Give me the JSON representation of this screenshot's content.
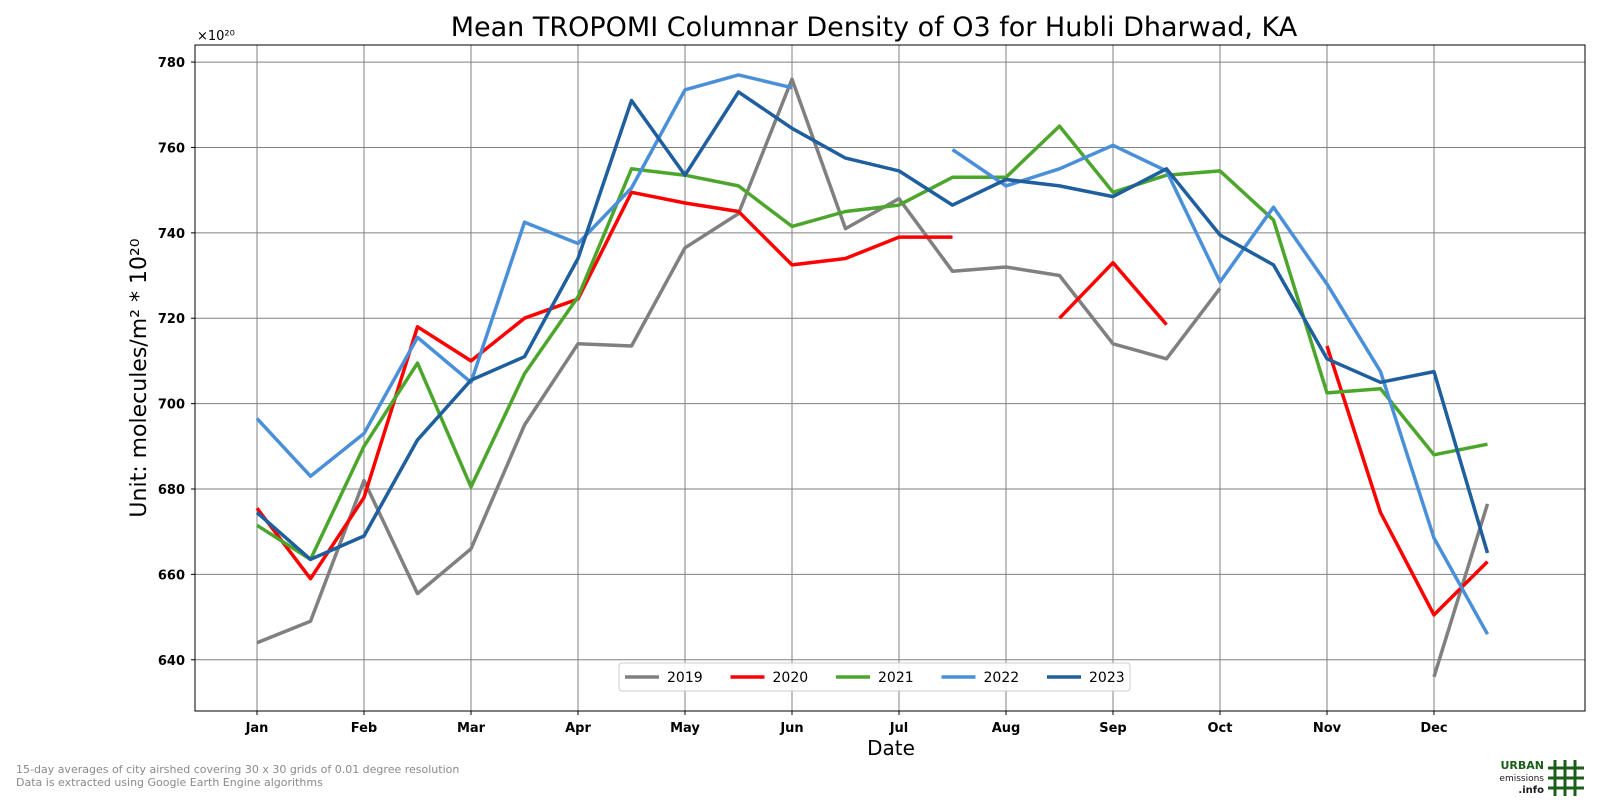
{
  "chart_data": {
    "type": "line",
    "title": "Mean TROPOMI Columnar Density of O3 for Hubli Dharwad, KA",
    "xlabel": "Date",
    "ylabel": "Unit: molecules/m² * 10²⁰",
    "y_multiplier_label": "×10²⁰",
    "x_tick_labels": [
      "Jan",
      "Feb",
      "Mar",
      "Apr",
      "May",
      "Jun",
      "Jul",
      "Aug",
      "Sep",
      "Oct",
      "Nov",
      "Dec"
    ],
    "x": [
      "Jan",
      "Jan 16",
      "Feb",
      "Feb 16",
      "Mar",
      "Mar 16",
      "Apr",
      "Apr 16",
      "May",
      "May 16",
      "Jun",
      "Jun 16",
      "Jul",
      "Jul 16",
      "Aug",
      "Aug 16",
      "Sep",
      "Sep 16",
      "Oct",
      "Oct 16",
      "Nov",
      "Nov 16",
      "Dec",
      "Dec 16"
    ],
    "ylim": [
      628,
      784
    ],
    "yticks": [
      640,
      660,
      680,
      700,
      720,
      740,
      760,
      780
    ],
    "grid": true,
    "legend_position": "bottom-center",
    "series": [
      {
        "name": "2019",
        "color": "#808080",
        "values": [
          644,
          649,
          682,
          655.5,
          666,
          695,
          714,
          713.5,
          736.5,
          744.5,
          776,
          741,
          748,
          731,
          732,
          730,
          714,
          710.5,
          727,
          null,
          null,
          null,
          636,
          676.5
        ]
      },
      {
        "name": "2020",
        "color": "#ff0000",
        "values": [
          675.5,
          659,
          678,
          718,
          710,
          720,
          724.5,
          749.5,
          747,
          745,
          732.5,
          734,
          739,
          739,
          null,
          720,
          733,
          718.5,
          null,
          null,
          713.5,
          674.5,
          650.5,
          663
        ]
      },
      {
        "name": "2021",
        "color": "#4ca62c",
        "values": [
          671.5,
          663.5,
          690,
          709.5,
          680.5,
          707,
          725,
          755,
          753.5,
          751,
          741.5,
          745,
          746.5,
          753,
          753,
          765,
          749.5,
          753.5,
          754.5,
          743,
          702.5,
          703.5,
          688,
          690.5
        ]
      },
      {
        "name": "2022",
        "color": "#4a90d9",
        "values": [
          696.5,
          683,
          693,
          715.5,
          705,
          742.5,
          737.5,
          750.5,
          773.5,
          777,
          774,
          null,
          null,
          759.5,
          751,
          755,
          760.5,
          754.5,
          728.5,
          746,
          728,
          707.5,
          668.5,
          646
        ]
      },
      {
        "name": "2023",
        "color": "#1f5f9e",
        "values": [
          674.5,
          663.5,
          669,
          691.5,
          705.5,
          711,
          734,
          771,
          753.5,
          773,
          764.5,
          757.5,
          754.5,
          746.5,
          752.5,
          751,
          748.5,
          755,
          739.5,
          732.5,
          710.5,
          705,
          707.5,
          665
        ]
      }
    ]
  },
  "footnote": {
    "line1": "15-day averages of city airshed covering 30 x 30 grids of 0.01 degree resolution",
    "line2": "Data is extracted using Google Earth Engine algorithms"
  },
  "logo": {
    "line1": "URBAN",
    "line2": "emissions",
    "line3": ".info",
    "color": "#1a5e1a"
  }
}
